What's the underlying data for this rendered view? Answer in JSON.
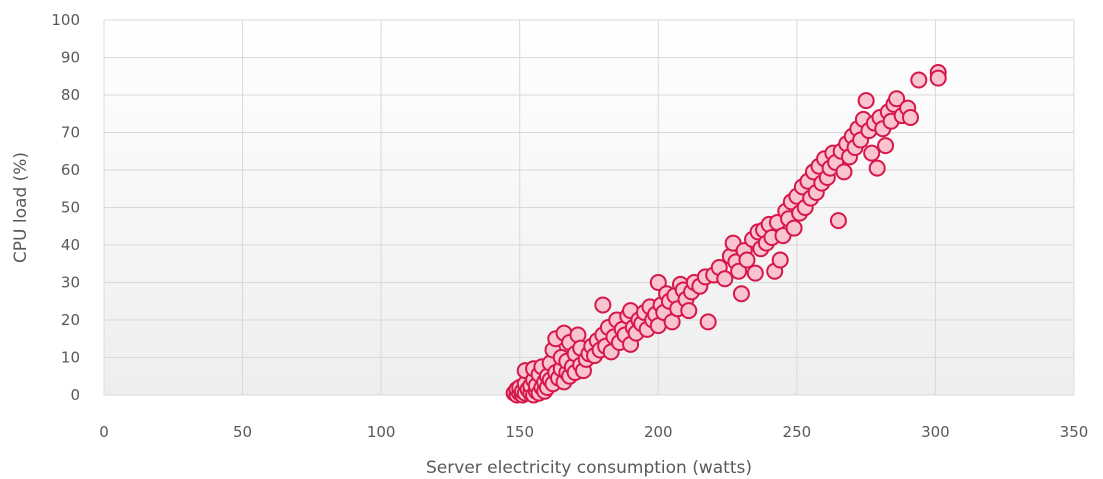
{
  "chart_data": {
    "type": "scatter",
    "title": "",
    "xlabel": "Server electricity consumption (watts)",
    "ylabel": "CPU load (%)",
    "xlim": [
      0,
      350
    ],
    "ylim": [
      0,
      100
    ],
    "x_ticks": [
      "0",
      "50",
      "100",
      "150",
      "200",
      "250",
      "300",
      "350"
    ],
    "y_ticks": [
      "0",
      "10",
      "20",
      "30",
      "40",
      "50",
      "60",
      "70",
      "80",
      "90",
      "100"
    ],
    "grid": true,
    "legend": "none",
    "colors": {
      "marker_fill": "#f9c4cf",
      "marker_stroke": "#d6174a",
      "grid": "#d9d9d9",
      "text": "#595959",
      "plot_bg_bottom": "#efefef"
    },
    "series": [
      {
        "values": [
          [
            148,
            0.5
          ],
          [
            149,
            0.0
          ],
          [
            149,
            1.5
          ],
          [
            150,
            0.5
          ],
          [
            150,
            2.0
          ],
          [
            151,
            0.0
          ],
          [
            151,
            1.0
          ],
          [
            152,
            0.5
          ],
          [
            152,
            3.0
          ],
          [
            152,
            6.5
          ],
          [
            153,
            1.5
          ],
          [
            154,
            0.5
          ],
          [
            154,
            2.5
          ],
          [
            155,
            0.0
          ],
          [
            155,
            4.0
          ],
          [
            155,
            7.0
          ],
          [
            156,
            1.0
          ],
          [
            156,
            2.5
          ],
          [
            157,
            0.5
          ],
          [
            157,
            5.5
          ],
          [
            158,
            2.0
          ],
          [
            158,
            7.5
          ],
          [
            159,
            1.0
          ],
          [
            159,
            3.5
          ],
          [
            160,
            2.0
          ],
          [
            160,
            5.0
          ],
          [
            161,
            4.0
          ],
          [
            161,
            8.5
          ],
          [
            162,
            3.0
          ],
          [
            162,
            12.0
          ],
          [
            163,
            6.0
          ],
          [
            163,
            15.0
          ],
          [
            164,
            4.5
          ],
          [
            165,
            7.0
          ],
          [
            165,
            10.0
          ],
          [
            166,
            3.5
          ],
          [
            166,
            16.5
          ],
          [
            167,
            6.0
          ],
          [
            167,
            9.0
          ],
          [
            168,
            5.0
          ],
          [
            168,
            14.0
          ],
          [
            169,
            7.5
          ],
          [
            170,
            6.0
          ],
          [
            170,
            11.0
          ],
          [
            171,
            16.0
          ],
          [
            172,
            8.0
          ],
          [
            172,
            12.5
          ],
          [
            173,
            6.5
          ],
          [
            174,
            9.5
          ],
          [
            175,
            11.0
          ],
          [
            176,
            13.0
          ],
          [
            177,
            10.5
          ],
          [
            178,
            14.5
          ],
          [
            179,
            12.0
          ],
          [
            180,
            16.0
          ],
          [
            180,
            24.0
          ],
          [
            181,
            13.0
          ],
          [
            182,
            18.0
          ],
          [
            183,
            11.5
          ],
          [
            184,
            15.5
          ],
          [
            185,
            20.0
          ],
          [
            186,
            14.0
          ],
          [
            187,
            17.5
          ],
          [
            188,
            16.0
          ],
          [
            189,
            21.0
          ],
          [
            190,
            13.5
          ],
          [
            190,
            22.5
          ],
          [
            191,
            18.0
          ],
          [
            192,
            16.5
          ],
          [
            193,
            20.0
          ],
          [
            194,
            19.0
          ],
          [
            195,
            22.0
          ],
          [
            196,
            17.5
          ],
          [
            197,
            23.5
          ],
          [
            198,
            20.0
          ],
          [
            199,
            21.5
          ],
          [
            200,
            18.5
          ],
          [
            200,
            30.0
          ],
          [
            201,
            24.0
          ],
          [
            202,
            22.0
          ],
          [
            203,
            27.0
          ],
          [
            204,
            25.0
          ],
          [
            205,
            19.5
          ],
          [
            206,
            26.5
          ],
          [
            207,
            23.0
          ],
          [
            208,
            29.5
          ],
          [
            209,
            28.0
          ],
          [
            210,
            25.5
          ],
          [
            211,
            22.5
          ],
          [
            212,
            27.5
          ],
          [
            213,
            30.0
          ],
          [
            215,
            29.0
          ],
          [
            217,
            31.5
          ],
          [
            218,
            19.5
          ],
          [
            220,
            32.0
          ],
          [
            222,
            34.0
          ],
          [
            224,
            31.0
          ],
          [
            226,
            37.0
          ],
          [
            227,
            40.5
          ],
          [
            228,
            35.5
          ],
          [
            229,
            33.0
          ],
          [
            230,
            27.0
          ],
          [
            231,
            38.5
          ],
          [
            232,
            36.0
          ],
          [
            234,
            41.5
          ],
          [
            235,
            32.5
          ],
          [
            236,
            43.5
          ],
          [
            237,
            39.0
          ],
          [
            238,
            44.0
          ],
          [
            239,
            40.5
          ],
          [
            240,
            45.5
          ],
          [
            241,
            42.0
          ],
          [
            242,
            33.0
          ],
          [
            243,
            46.0
          ],
          [
            244,
            36.0
          ],
          [
            245,
            42.5
          ],
          [
            246,
            49.0
          ],
          [
            247,
            47.0
          ],
          [
            248,
            51.5
          ],
          [
            249,
            44.5
          ],
          [
            250,
            53.0
          ],
          [
            251,
            48.5
          ],
          [
            252,
            55.5
          ],
          [
            253,
            50.0
          ],
          [
            254,
            57.0
          ],
          [
            255,
            52.5
          ],
          [
            256,
            59.5
          ],
          [
            257,
            54.0
          ],
          [
            258,
            61.0
          ],
          [
            259,
            56.5
          ],
          [
            260,
            63.0
          ],
          [
            261,
            58.0
          ],
          [
            262,
            60.5
          ],
          [
            263,
            64.5
          ],
          [
            264,
            62.0
          ],
          [
            265,
            46.5
          ],
          [
            266,
            65.0
          ],
          [
            267,
            59.5
          ],
          [
            268,
            67.0
          ],
          [
            269,
            63.5
          ],
          [
            270,
            69.0
          ],
          [
            271,
            66.0
          ],
          [
            272,
            71.0
          ],
          [
            273,
            68.0
          ],
          [
            274,
            73.5
          ],
          [
            275,
            78.5
          ],
          [
            276,
            70.5
          ],
          [
            277,
            64.5
          ],
          [
            278,
            72.5
          ],
          [
            279,
            60.5
          ],
          [
            280,
            74.0
          ],
          [
            281,
            71.0
          ],
          [
            282,
            66.5
          ],
          [
            283,
            75.5
          ],
          [
            284,
            73.0
          ],
          [
            285,
            77.5
          ],
          [
            286,
            79.0
          ],
          [
            288,
            74.5
          ],
          [
            290,
            76.5
          ],
          [
            291,
            74.0
          ],
          [
            294,
            84.0
          ],
          [
            301,
            86.0
          ],
          [
            301,
            84.5
          ]
        ]
      }
    ]
  }
}
